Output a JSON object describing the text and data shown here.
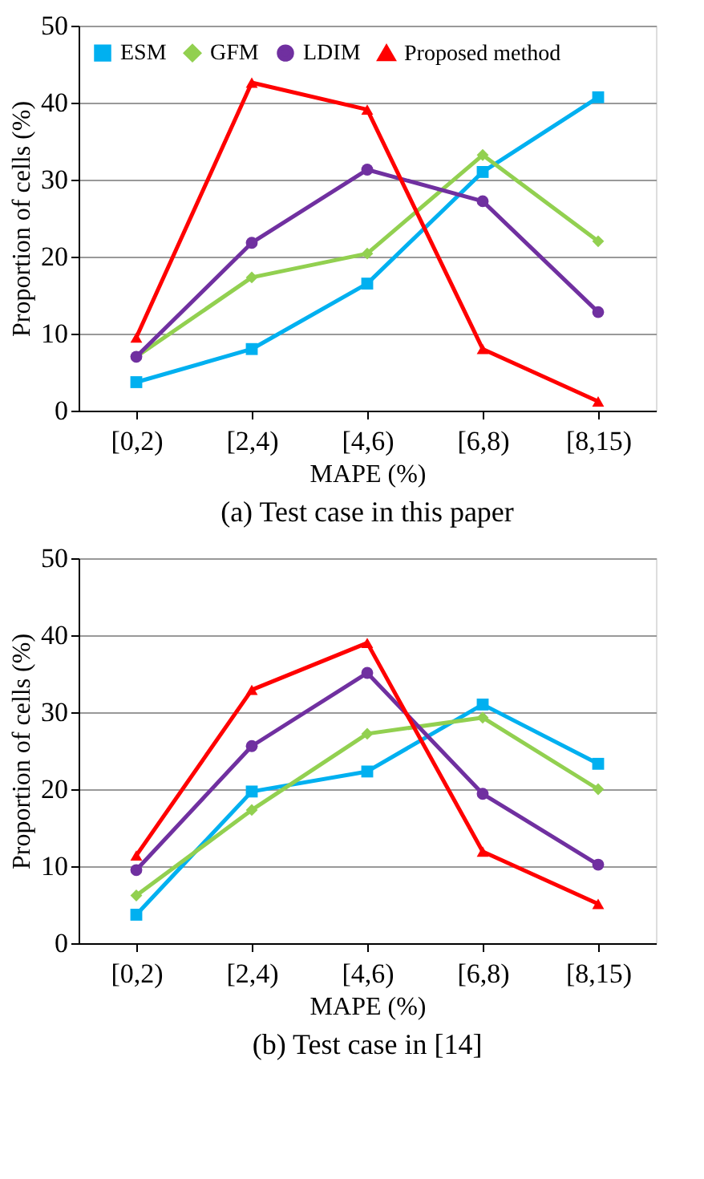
{
  "chart_data": [
    {
      "type": "line",
      "title": "(a) Test case in this paper",
      "xlabel": "MAPE (%)",
      "ylabel": "Proportion of cells (%)",
      "categories": [
        "[0,2)",
        "[2,4)",
        "[4,6)",
        "[6,8)",
        "[8,15)"
      ],
      "series": [
        {
          "name": "ESM",
          "color": "#00b0f0",
          "marker": "square",
          "values": [
            3.7,
            8,
            16.5,
            31,
            40.7
          ]
        },
        {
          "name": "GFM",
          "color": "#92d050",
          "marker": "diamond",
          "values": [
            7,
            17.3,
            20.4,
            33.2,
            22
          ]
        },
        {
          "name": "LDIM",
          "color": "#7030a0",
          "marker": "circle",
          "values": [
            7,
            21.8,
            31.3,
            27.2,
            12.8
          ]
        },
        {
          "name": "Proposed method",
          "color": "#ff0000",
          "marker": "triangle",
          "values": [
            9.5,
            42.6,
            39.1,
            8,
            1.2
          ]
        }
      ],
      "ylim": [
        0,
        50
      ],
      "yticks": [
        0,
        10,
        20,
        30,
        40,
        50
      ],
      "grid": "y",
      "legend": "top",
      "line_style": "solid"
    },
    {
      "type": "line",
      "title": "(b) Test case in [14]",
      "xlabel": "MAPE (%)",
      "ylabel": "Proportion of cells (%)",
      "categories": [
        "[0,2)",
        "[2,4)",
        "[4,6)",
        "[6,8)",
        "[8,15)"
      ],
      "series": [
        {
          "name": "ESM",
          "color": "#00b0f0",
          "marker": "square",
          "values": [
            3.7,
            19.7,
            22.3,
            31,
            23.3
          ]
        },
        {
          "name": "GFM",
          "color": "#92d050",
          "marker": "diamond",
          "values": [
            6.2,
            17.3,
            27.2,
            29.3,
            20
          ]
        },
        {
          "name": "LDIM",
          "color": "#7030a0",
          "marker": "circle",
          "values": [
            9.5,
            25.6,
            35.1,
            19.4,
            10.2
          ]
        },
        {
          "name": "Proposed method",
          "color": "#ff0000",
          "marker": "triangle",
          "values": [
            11.4,
            32.9,
            39,
            11.9,
            5.1
          ]
        }
      ],
      "ylim": [
        0,
        50
      ],
      "yticks": [
        0,
        10,
        20,
        30,
        40,
        50
      ],
      "grid": "y",
      "legend": "top",
      "line_style": "solid"
    }
  ]
}
